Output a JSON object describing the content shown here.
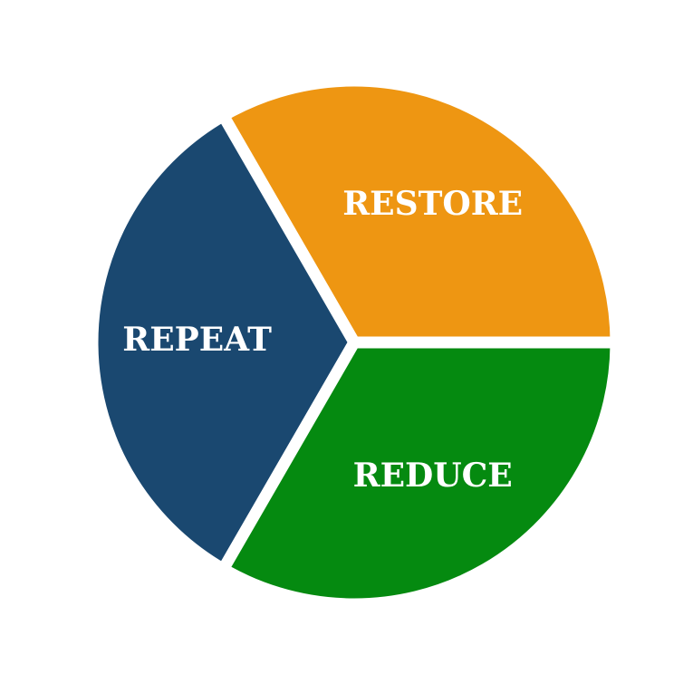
{
  "chart_data": {
    "type": "pie",
    "title": "",
    "categories": [
      "RESTORE",
      "REPEAT",
      "REDUCE"
    ],
    "values": [
      1,
      1,
      1
    ],
    "colors": [
      "#EE9612",
      "#1A4870",
      "#058A10"
    ],
    "start_angle_deg": 0,
    "direction": "counterclockwise",
    "labels_inside": true
  }
}
